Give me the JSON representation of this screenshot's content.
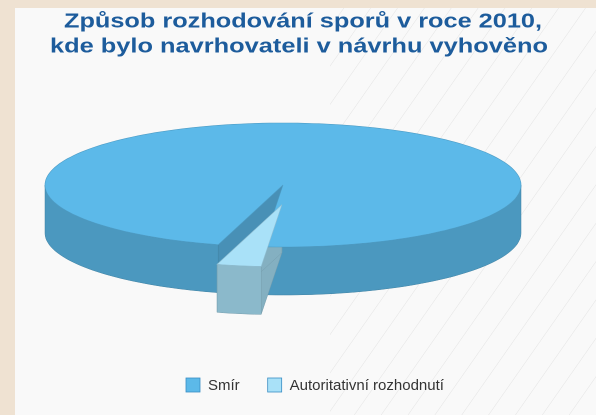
{
  "chart_data": {
    "type": "pie",
    "title": [
      "Způsob rozhodování sporů v roce 2010,",
      "kde bylo navrhovateli v návrhu vyhověno"
    ],
    "categories": [
      "Smír",
      "Autoritativní rozhodnutí"
    ],
    "values": [
      97,
      3
    ],
    "colors": [
      "#5cb9e9",
      "#a9e1f8"
    ],
    "legend": "bottom"
  }
}
